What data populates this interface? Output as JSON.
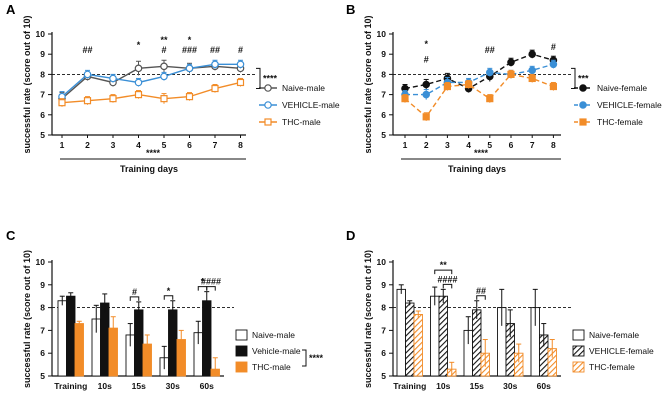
{
  "colors": {
    "naive": "#555555",
    "vehicle": "#3a8fd6",
    "thc": "#f28c28",
    "black": "#111111",
    "ref": "#111111"
  },
  "chart_data": [
    {
      "panel": "A",
      "type": "line",
      "xlabel": "Training days",
      "ylabel": "successful rate (score out of 10)",
      "x": [
        1,
        2,
        3,
        4,
        5,
        6,
        7,
        8
      ],
      "ylim": [
        5,
        10
      ],
      "yticks": [
        5,
        6,
        7,
        8,
        9,
        10
      ],
      "reference_line": 8,
      "series": [
        {
          "name": "Naive-male",
          "color_key": "naive",
          "marker": "open-circle",
          "dash": "solid",
          "values": [
            6.8,
            7.9,
            7.6,
            8.3,
            8.4,
            8.3,
            8.4,
            8.3
          ],
          "errors": [
            0.3,
            0.2,
            0.2,
            0.35,
            0.3,
            0.25,
            0.2,
            0.2
          ]
        },
        {
          "name": "VEHICLE-male",
          "color_key": "vehicle",
          "marker": "open-circle",
          "dash": "solid",
          "values": [
            6.9,
            8.0,
            7.8,
            7.6,
            7.9,
            8.3,
            8.5,
            8.5
          ],
          "errors": [
            0.25,
            0.2,
            0.2,
            0.2,
            0.2,
            0.2,
            0.2,
            0.2
          ]
        },
        {
          "name": "THC-male",
          "color_key": "thc",
          "marker": "open-square",
          "dash": "solid",
          "values": [
            6.6,
            6.7,
            6.8,
            7.0,
            6.8,
            6.9,
            7.3,
            7.6
          ],
          "errors": [
            0.2,
            0.2,
            0.2,
            0.2,
            0.25,
            0.2,
            0.2,
            0.2
          ]
        }
      ],
      "annotations": [
        {
          "x": 2,
          "y": 9.05,
          "text": "##"
        },
        {
          "x": 4,
          "y": 9.3,
          "text": "*"
        },
        {
          "x": 5,
          "y": 9.55,
          "text": "**"
        },
        {
          "x": 5,
          "y": 9.05,
          "text": "#"
        },
        {
          "x": 6,
          "y": 9.55,
          "text": "*"
        },
        {
          "x": 6,
          "y": 9.05,
          "text": "###"
        },
        {
          "x": 7,
          "y": 9.05,
          "text": "##"
        },
        {
          "x": 8,
          "y": 9.05,
          "text": "#"
        }
      ],
      "bottom_bar_label": "****",
      "side_bracket_label": "****",
      "legend_position": "right"
    },
    {
      "panel": "B",
      "type": "line",
      "xlabel": "Training days",
      "ylabel": "successful rate (score out of 10)",
      "x": [
        1,
        2,
        3,
        4,
        5,
        6,
        7,
        8
      ],
      "ylim": [
        5,
        10
      ],
      "yticks": [
        5,
        6,
        7,
        8,
        9,
        10
      ],
      "reference_line": 8,
      "series": [
        {
          "name": "Naive-female",
          "color_key": "black",
          "marker": "filled-circle",
          "dash": "dashed",
          "values": [
            7.3,
            7.5,
            7.8,
            7.3,
            7.9,
            8.6,
            9.0,
            8.7
          ],
          "errors": [
            0.2,
            0.25,
            0.25,
            0.2,
            0.25,
            0.2,
            0.2,
            0.2
          ]
        },
        {
          "name": "VEHICLE-female",
          "color_key": "vehicle",
          "marker": "filled-circle",
          "dash": "dashed",
          "values": [
            7.0,
            7.0,
            7.6,
            7.6,
            8.1,
            8.0,
            8.2,
            8.5
          ],
          "errors": [
            0.2,
            0.25,
            0.25,
            0.2,
            0.2,
            0.2,
            0.2,
            0.2
          ]
        },
        {
          "name": "THC-female",
          "color_key": "thc",
          "marker": "filled-square",
          "dash": "dashed",
          "values": [
            6.8,
            5.9,
            7.4,
            7.5,
            6.8,
            8.0,
            7.8,
            7.4
          ],
          "errors": [
            0.2,
            0.2,
            0.2,
            0.2,
            0.2,
            0.2,
            0.2,
            0.2
          ]
        }
      ],
      "annotations": [
        {
          "x": 2,
          "y": 9.35,
          "text": "*"
        },
        {
          "x": 2,
          "y": 8.6,
          "text": "#"
        },
        {
          "x": 5,
          "y": 9.05,
          "text": "##"
        },
        {
          "x": 8,
          "y": 9.2,
          "text": "#"
        }
      ],
      "bottom_bar_label": "****",
      "side_bracket_label": "***",
      "legend_position": "right"
    },
    {
      "panel": "C",
      "type": "bar",
      "ylabel": "successful rate (score out of 10)",
      "categories": [
        "Training",
        "10s",
        "15s",
        "30s",
        "60s"
      ],
      "ylim": [
        5,
        10
      ],
      "yticks": [
        5,
        6,
        7,
        8,
        9,
        10
      ],
      "reference_line": 8,
      "series": [
        {
          "name": "Naive-male",
          "fill": "white",
          "values": [
            8.3,
            7.5,
            6.8,
            5.8,
            6.9
          ],
          "errors": [
            0.2,
            0.6,
            0.5,
            0.5,
            0.5
          ]
        },
        {
          "name": "Vehicle-male",
          "fill": "black",
          "values": [
            8.5,
            8.2,
            7.9,
            7.9,
            8.3
          ],
          "errors": [
            0.15,
            0.4,
            0.35,
            0.4,
            0.4
          ]
        },
        {
          "name": "THC-male",
          "fill": "thc",
          "values": [
            7.3,
            7.1,
            6.4,
            6.6,
            5.3
          ],
          "errors": [
            0.1,
            0.5,
            0.4,
            0.4,
            0.5
          ]
        }
      ],
      "brackets": [
        {
          "category": 2,
          "from": 0,
          "to": 1,
          "text": "#"
        },
        {
          "category": 3,
          "from": 0,
          "to": 1,
          "text": "*"
        },
        {
          "category": 4,
          "from": 0,
          "to": 1,
          "text": "*"
        },
        {
          "category": 4,
          "from": 1,
          "to": 2,
          "text": "####"
        }
      ],
      "side_bracket_label": "****",
      "legend_position": "right"
    },
    {
      "panel": "D",
      "type": "bar",
      "ylabel": "successful rate (score out of 10)",
      "categories": [
        "Training",
        "10s",
        "15s",
        "30s",
        "60s"
      ],
      "ylim": [
        5,
        10
      ],
      "yticks": [
        5,
        6,
        7,
        8,
        9,
        10
      ],
      "reference_line": 8,
      "series": [
        {
          "name": "Naive-female",
          "fill": "white",
          "values": [
            8.8,
            8.5,
            7.0,
            8.0,
            8.0
          ],
          "errors": [
            0.2,
            0.4,
            0.6,
            0.8,
            0.8
          ]
        },
        {
          "name": "VEHICLE-female",
          "fill": "hatch-black",
          "values": [
            8.2,
            8.5,
            7.9,
            7.3,
            6.8
          ],
          "errors": [
            0.1,
            0.3,
            0.4,
            0.6,
            0.5
          ]
        },
        {
          "name": "THC-female",
          "fill": "hatch-orange",
          "values": [
            7.7,
            5.3,
            6.0,
            6.0,
            6.2
          ],
          "errors": [
            0.15,
            0.3,
            0.6,
            0.4,
            0.4
          ]
        }
      ],
      "brackets": [
        {
          "category": 1,
          "from": 0,
          "to": 2,
          "text": "**",
          "level": 2
        },
        {
          "category": 1,
          "from": 1,
          "to": 2,
          "text": "####",
          "level": 1
        },
        {
          "category": 2,
          "from": 1,
          "to": 2,
          "text": "##",
          "level": 1
        }
      ],
      "legend_position": "right"
    }
  ]
}
